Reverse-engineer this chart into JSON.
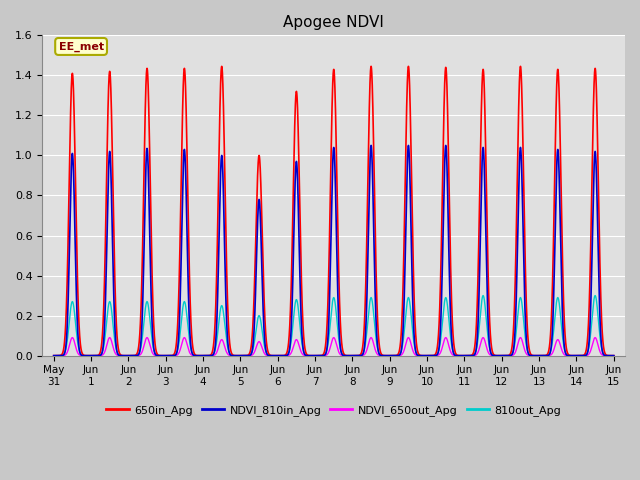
{
  "title": "Apogee NDVI",
  "legend_label": "EE_met",
  "series": {
    "650in_Apg": {
      "color": "#ff0000",
      "linewidth": 1.2
    },
    "NDVI_810in_Apg": {
      "color": "#0000cc",
      "linewidth": 1.2
    },
    "NDVI_650out_Apg": {
      "color": "#ff00ff",
      "linewidth": 1.0
    },
    "810out_Apg": {
      "color": "#00cccc",
      "linewidth": 1.0
    }
  },
  "ylim": [
    0.0,
    1.6
  ],
  "fig_background": "#c8c8c8",
  "ax_background": "#e0e0e0",
  "xtick_labels": [
    "May\n31",
    "Jun\n1",
    "Jun\n2",
    "Jun\n3",
    "Jun\n4",
    "Jun\n5",
    "Jun\n6",
    "Jun\n7",
    "Jun\n8",
    "Jun\n9",
    "Jun\n10",
    "Jun\n11",
    "Jun\n12",
    "Jun\n13",
    "Jun\n14",
    "Jun\n15"
  ],
  "ytick_positions": [
    0.0,
    0.2,
    0.4,
    0.6,
    0.8,
    1.0,
    1.2,
    1.4,
    1.6
  ],
  "peak_650in": [
    1.41,
    1.42,
    1.435,
    1.435,
    1.445,
    1.0,
    1.32,
    1.43,
    1.445,
    1.445,
    1.44,
    1.43,
    1.445,
    1.43,
    1.435
  ],
  "peak_810in": [
    1.01,
    1.02,
    1.035,
    1.03,
    1.0,
    0.78,
    0.97,
    1.04,
    1.05,
    1.05,
    1.05,
    1.04,
    1.04,
    1.03,
    1.02
  ],
  "peak_650out": [
    0.09,
    0.09,
    0.09,
    0.09,
    0.08,
    0.07,
    0.08,
    0.09,
    0.09,
    0.09,
    0.09,
    0.09,
    0.09,
    0.08,
    0.09
  ],
  "peak_810out": [
    0.27,
    0.27,
    0.27,
    0.27,
    0.25,
    0.2,
    0.28,
    0.29,
    0.29,
    0.29,
    0.29,
    0.3,
    0.29,
    0.29,
    0.3
  ]
}
